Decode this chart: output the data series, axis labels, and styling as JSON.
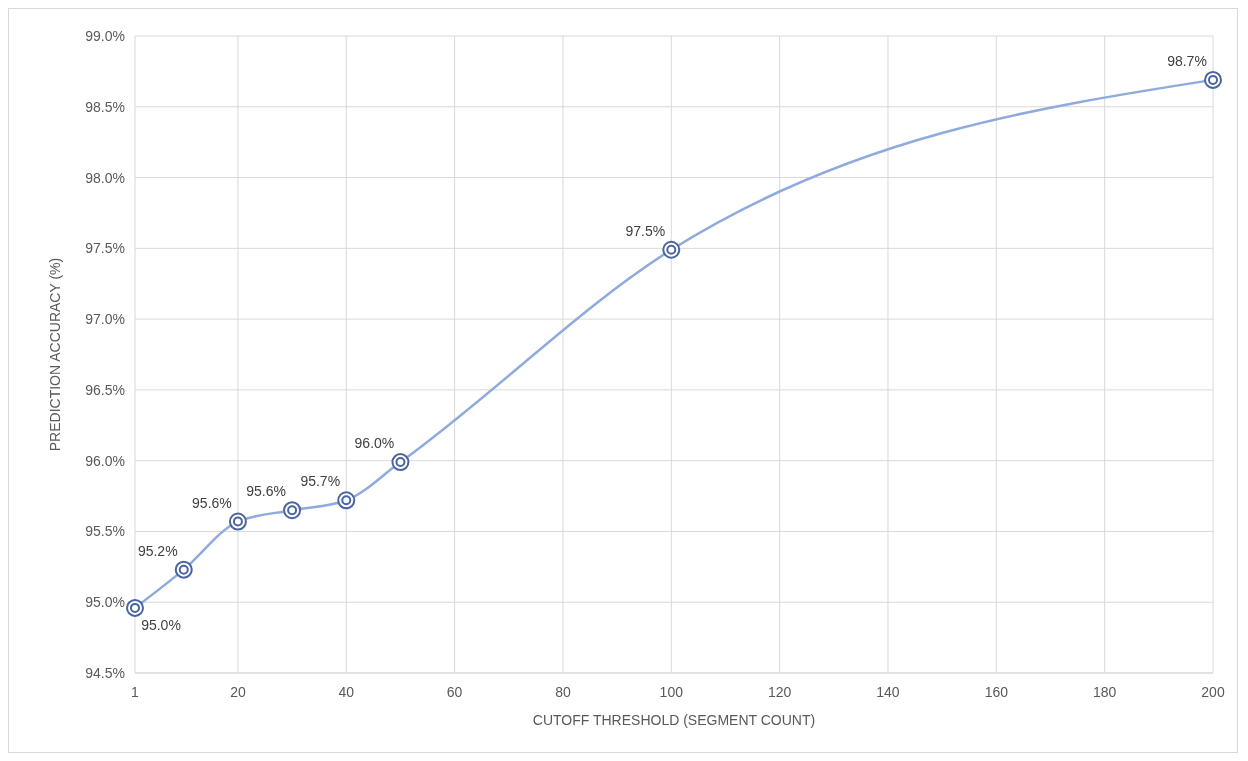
{
  "chart_data": {
    "type": "line",
    "xlabel": "CUTOFF THRESHOLD (SEGMENT COUNT)",
    "ylabel": "PREDICTION ACCURACY (%)",
    "x": [
      1,
      10,
      20,
      30,
      40,
      50,
      100,
      200
    ],
    "series": [
      {
        "color": "#8faadc",
        "values": [
          94.96,
          95.23,
          95.57,
          95.65,
          95.72,
          95.99,
          97.49,
          98.69
        ],
        "value_labels": [
          "95.0%",
          "95.2%",
          "95.6%",
          "95.6%",
          "95.7%",
          "96.0%",
          "97.5%",
          "98.7%"
        ]
      }
    ],
    "xlim": [
      1,
      200
    ],
    "xticks": [
      1,
      20,
      40,
      60,
      80,
      100,
      120,
      140,
      160,
      180,
      200
    ],
    "ylim": [
      94.5,
      99.0
    ],
    "yticks": [
      {
        "value": 94.5,
        "label": "94.5%"
      },
      {
        "value": 95.0,
        "label": "95.0%"
      },
      {
        "value": 95.5,
        "label": "95.5%"
      },
      {
        "value": 96.0,
        "label": "96.0%"
      },
      {
        "value": 96.5,
        "label": "96.5%"
      },
      {
        "value": 97.0,
        "label": "97.0%"
      },
      {
        "value": 97.5,
        "label": "97.5%"
      },
      {
        "value": 98.0,
        "label": "98.0%"
      },
      {
        "value": 98.5,
        "label": "98.5%"
      },
      {
        "value": 99.0,
        "label": "99.0%"
      }
    ],
    "grid": true,
    "marker": "circle",
    "line_style": "solid"
  }
}
